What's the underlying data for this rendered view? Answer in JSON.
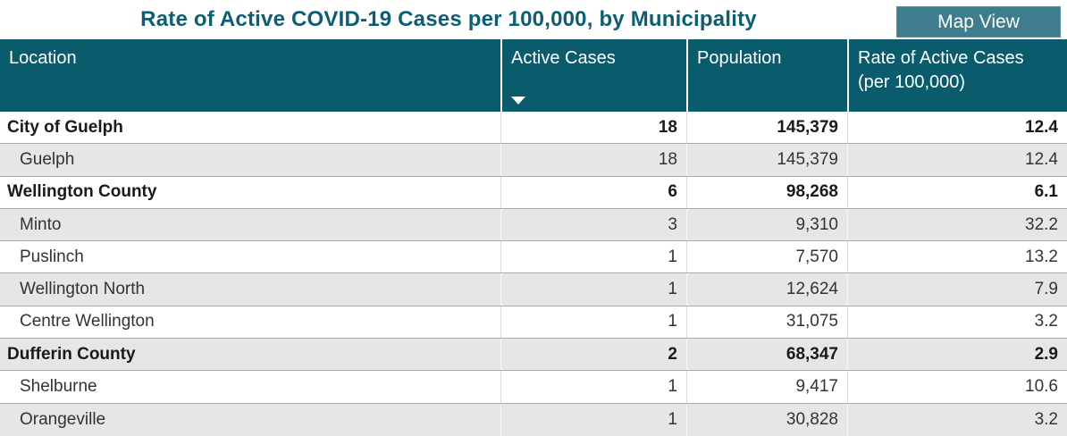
{
  "page": {
    "title": "Rate of Active COVID-19 Cases per 100,000, by Municipality",
    "map_view_label": "Map View"
  },
  "colors": {
    "header_bg": "#0a5b6b",
    "title_text": "#0c5e74",
    "button_bg": "#3e7d8e",
    "stripe_bg": "#e6e6e6",
    "row_line": "#ababab"
  },
  "table": {
    "headers": {
      "location": "Location",
      "active_cases": "Active Cases",
      "population": "Population",
      "rate": "Rate of Active Cases (per 100,000)"
    },
    "sort": {
      "column": "Active Cases",
      "direction": "descending"
    },
    "rows": [
      {
        "type": "group",
        "location": "City of Guelph",
        "active_cases": "18",
        "population": "145,379",
        "rate": "12.4"
      },
      {
        "type": "municipality",
        "location": "Guelph",
        "active_cases": "18",
        "population": "145,379",
        "rate": "12.4"
      },
      {
        "type": "group",
        "location": "Wellington County",
        "active_cases": "6",
        "population": "98,268",
        "rate": "6.1"
      },
      {
        "type": "municipality",
        "location": "Minto",
        "active_cases": "3",
        "population": "9,310",
        "rate": "32.2"
      },
      {
        "type": "municipality",
        "location": "Puslinch",
        "active_cases": "1",
        "population": "7,570",
        "rate": "13.2"
      },
      {
        "type": "municipality",
        "location": "Wellington North",
        "active_cases": "1",
        "population": "12,624",
        "rate": "7.9"
      },
      {
        "type": "municipality",
        "location": "Centre Wellington",
        "active_cases": "1",
        "population": "31,075",
        "rate": "3.2"
      },
      {
        "type": "group",
        "location": "Dufferin County",
        "active_cases": "2",
        "population": "68,347",
        "rate": "2.9"
      },
      {
        "type": "municipality",
        "location": "Shelburne",
        "active_cases": "1",
        "population": "9,417",
        "rate": "10.6"
      },
      {
        "type": "municipality",
        "location": "Orangeville",
        "active_cases": "1",
        "population": "30,828",
        "rate": "3.2"
      }
    ]
  }
}
